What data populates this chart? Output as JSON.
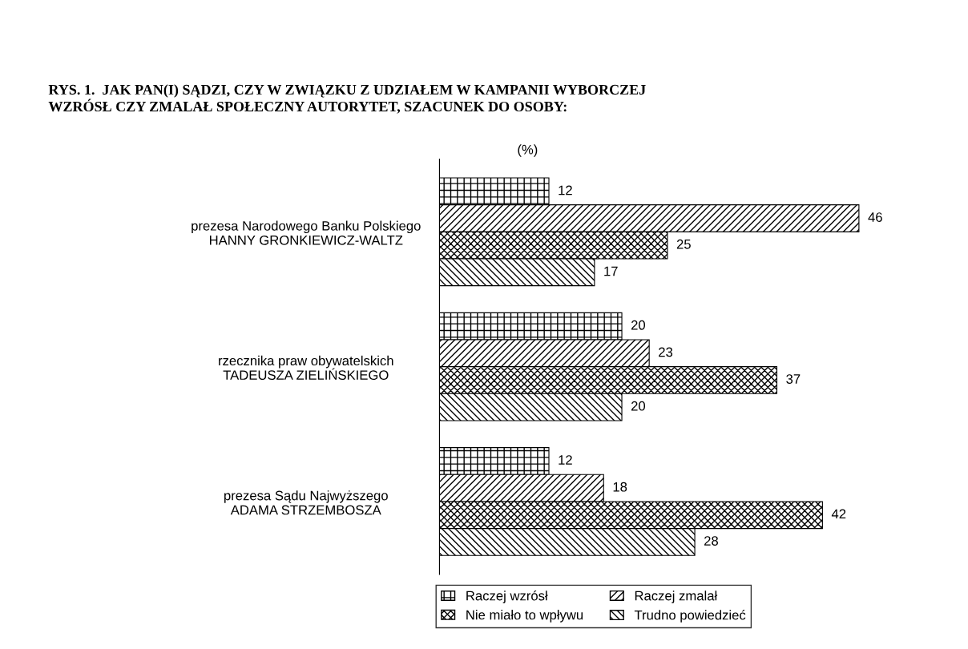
{
  "chart_data": {
    "type": "bar",
    "orientation": "horizontal",
    "title": "RYS. 1.  JAK PAN(I) SĄDZI, CZY W ZWIĄZKU Z UDZIAŁEM W KAMPANII WYBORCZEJ\nWZRÓSŁ CZY ZMALAŁ SPOŁECZNY AUTORYTET, SZACUNEK DO OSOBY:",
    "annotations": [
      "(%)"
    ],
    "categories": [
      "prezesa Narodowego Banku Polskiego\nHANNY GRONKIEWICZ-WALTZ",
      "rzecznika praw obywatelskich\nTADEUSZA ZIELIŃSKIEGO",
      "prezesa Sądu Najwyższego\nADAMA STRZEMBOSZA"
    ],
    "series": [
      {
        "name": "Raczej wzrósł",
        "color": "#000000",
        "values": [
          12,
          20,
          12
        ]
      },
      {
        "name": "Raczej zmalał",
        "color": "#000000",
        "values": [
          46,
          23,
          18
        ]
      },
      {
        "name": "Nie miało to wpływu",
        "color": "#000000",
        "values": [
          25,
          37,
          42
        ]
      },
      {
        "name": "Trudno powiedzieć",
        "color": "#000000",
        "values": [
          17,
          20,
          28
        ]
      }
    ],
    "tick_labels": "y",
    "data_labels": true,
    "legend": "bottom",
    "grid": false
  }
}
